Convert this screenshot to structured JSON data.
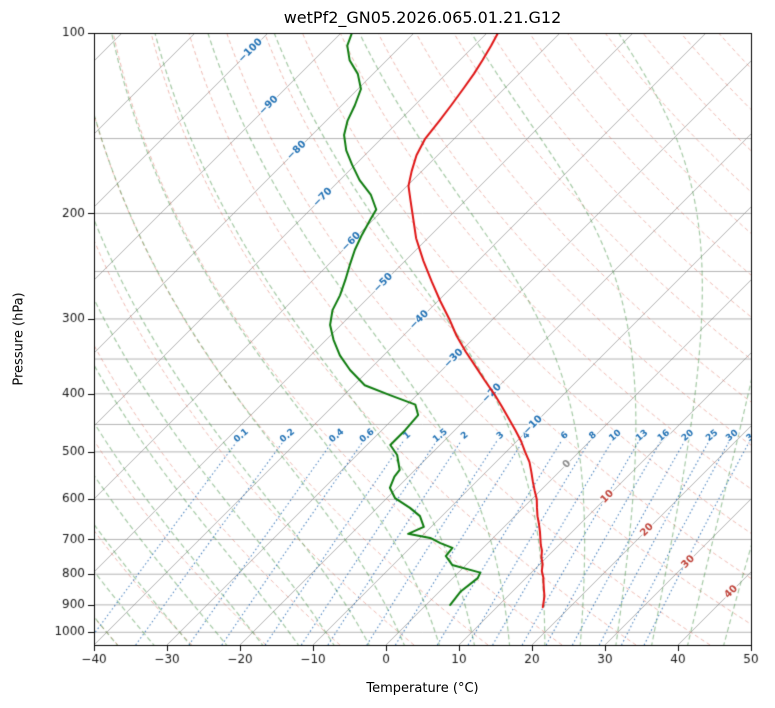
{
  "chart_data": {
    "type": "line",
    "variant": "skew-t-log-p-sounding",
    "title": "wetPf2_GN05.2026.065.01.21.G12",
    "xlabel": "Temperature (°C)",
    "ylabel": "Pressure (hPa)",
    "xlim": [
      -40,
      50
    ],
    "pressure_lim": [
      100,
      1050
    ],
    "skew_deg": 45,
    "grid": true,
    "legend": "none",
    "x_ticks": [
      -40,
      -30,
      -20,
      -10,
      0,
      10,
      20,
      30,
      40,
      50
    ],
    "x_tick_labels": [
      "−40",
      "−30",
      "−20",
      "−10",
      "0",
      "10",
      "20",
      "30",
      "40",
      "50"
    ],
    "pressure_ticks": [
      100,
      200,
      300,
      400,
      500,
      600,
      700,
      800,
      900,
      1000
    ],
    "pressure_tick_labels": [
      "100",
      "200",
      "300",
      "400",
      "500",
      "600",
      "700",
      "800",
      "900",
      "1000"
    ],
    "isobars": [
      100,
      150,
      200,
      250,
      300,
      350,
      400,
      450,
      500,
      600,
      700,
      800,
      900,
      1000
    ],
    "isotherms": {
      "start": -120,
      "end": 50,
      "step": 10
    },
    "isotherm_labels": [
      {
        "label": "−100",
        "t": -100,
        "p": 107
      },
      {
        "label": "−90",
        "t": -90,
        "p": 132
      },
      {
        "label": "−80",
        "t": -80,
        "p": 157
      },
      {
        "label": "−70",
        "t": -70,
        "p": 188
      },
      {
        "label": "−60",
        "t": -60,
        "p": 223
      },
      {
        "label": "−50",
        "t": -50,
        "p": 261
      },
      {
        "label": "−40",
        "t": -40,
        "p": 301
      },
      {
        "label": "−30",
        "t": -30,
        "p": 349
      },
      {
        "label": "−20",
        "t": -20,
        "p": 399
      },
      {
        "label": "−10",
        "t": -10,
        "p": 451
      },
      {
        "label": "0",
        "t": 0,
        "p": 524
      },
      {
        "label": "10",
        "t": 10,
        "p": 594
      },
      {
        "label": "20",
        "t": 20,
        "p": 675
      },
      {
        "label": "30",
        "t": 30,
        "p": 763
      },
      {
        "label": "40",
        "t": 40,
        "p": 856
      }
    ],
    "dry_adiabats_c": {
      "start": -40,
      "end": 190,
      "step": 10
    },
    "moist_adiabats_c": {
      "start": -55,
      "end": 45,
      "step": 5
    },
    "mixing_ratio_gkg": [
      0.1,
      0.2,
      0.4,
      0.6,
      1,
      1.5,
      2,
      3,
      4,
      6,
      8,
      10,
      13,
      16,
      20,
      25,
      30,
      36
    ],
    "mixing_labels": [
      "0.1",
      "0.2",
      "0.4",
      "0.6",
      "1",
      "1.5",
      "2",
      "3",
      "4",
      "6",
      "8",
      "10",
      "13",
      "16",
      "20",
      "25",
      "30",
      "36"
    ],
    "mixing_label_pressure": 470,
    "mixing_line_top_pressure": 478,
    "colors": {
      "grid": "rgba(130,130,130,0.6)",
      "dry_adiabat": "rgba(217,95,77,0.42)",
      "moist_adiabat": "rgba(60,140,60,0.45)",
      "mixing_line": "rgba(30,100,175,0.75)",
      "mixing_label": "#2272b5",
      "cold_label": "#2272b5",
      "zero_label": "#8c8c8c",
      "warm_label": "#c0453c",
      "axis": "#000000",
      "tick_text": "#1a1a1a"
    },
    "series": [
      {
        "name": "temperature",
        "color": "#e01515",
        "width": 2,
        "points": [
          [
            908,
            16.3
          ],
          [
            890,
            15.7
          ],
          [
            870,
            15.0
          ],
          [
            850,
            14.1
          ],
          [
            830,
            13.2
          ],
          [
            810,
            12.3
          ],
          [
            790,
            11.2
          ],
          [
            770,
            10.4
          ],
          [
            750,
            9.3
          ],
          [
            730,
            8.4
          ],
          [
            715,
            7.5
          ],
          [
            700,
            6.7
          ],
          [
            680,
            5.6
          ],
          [
            660,
            4.4
          ],
          [
            640,
            3.1
          ],
          [
            620,
            1.9
          ],
          [
            600,
            0.7
          ],
          [
            580,
            -0.8
          ],
          [
            560,
            -2.3
          ],
          [
            540,
            -3.8
          ],
          [
            520,
            -5.4
          ],
          [
            500,
            -7.4
          ],
          [
            480,
            -9.4
          ],
          [
            460,
            -11.7
          ],
          [
            440,
            -14.2
          ],
          [
            420,
            -16.8
          ],
          [
            400,
            -19.6
          ],
          [
            380,
            -22.7
          ],
          [
            360,
            -25.9
          ],
          [
            340,
            -29.3
          ],
          [
            320,
            -32.7
          ],
          [
            300,
            -36.0
          ],
          [
            280,
            -39.7
          ],
          [
            260,
            -43.5
          ],
          [
            240,
            -47.5
          ],
          [
            220,
            -51.6
          ],
          [
            200,
            -55.5
          ],
          [
            190,
            -57.6
          ],
          [
            180,
            -59.8
          ],
          [
            170,
            -61.4
          ],
          [
            160,
            -62.9
          ],
          [
            150,
            -64.0
          ],
          [
            140,
            -64.5
          ],
          [
            132,
            -65.0
          ],
          [
            124,
            -65.6
          ],
          [
            117,
            -66.2
          ],
          [
            111,
            -66.9
          ],
          [
            105,
            -67.7
          ],
          [
            100,
            -68.5
          ]
        ]
      },
      {
        "name": "dewpoint",
        "color": "#0e7c0e",
        "width": 2,
        "points": [
          [
            900,
            3.3
          ],
          [
            856,
            2.9
          ],
          [
            812,
            3.4
          ],
          [
            795,
            3.0
          ],
          [
            772,
            -1.9
          ],
          [
            746,
            -4.0
          ],
          [
            723,
            -4.2
          ],
          [
            710,
            -6.5
          ],
          [
            696,
            -8.6
          ],
          [
            685,
            -12.2
          ],
          [
            667,
            -11.0
          ],
          [
            640,
            -13.0
          ],
          [
            620,
            -15.5
          ],
          [
            597,
            -18.9
          ],
          [
            574,
            -21.0
          ],
          [
            550,
            -21.9
          ],
          [
            536,
            -22.1
          ],
          [
            506,
            -24.5
          ],
          [
            487,
            -26.8
          ],
          [
            460,
            -26.8
          ],
          [
            434,
            -27.1
          ],
          [
            417,
            -28.9
          ],
          [
            402,
            -33.7
          ],
          [
            387,
            -38.5
          ],
          [
            365,
            -42.6
          ],
          [
            345,
            -46.0
          ],
          [
            325,
            -49.0
          ],
          [
            307,
            -51.5
          ],
          [
            290,
            -53.2
          ],
          [
            274,
            -54.2
          ],
          [
            258,
            -55.6
          ],
          [
            244,
            -57.0
          ],
          [
            230,
            -58.4
          ],
          [
            217,
            -59.5
          ],
          [
            205,
            -60.4
          ],
          [
            197,
            -61.0
          ],
          [
            186,
            -63.8
          ],
          [
            176,
            -67.3
          ],
          [
            166,
            -70.4
          ],
          [
            157,
            -73.2
          ],
          [
            148,
            -75.6
          ],
          [
            140,
            -77.1
          ],
          [
            132,
            -78.2
          ],
          [
            124,
            -79.6
          ],
          [
            117,
            -82.1
          ],
          [
            111,
            -85.1
          ],
          [
            105,
            -87.4
          ],
          [
            100,
            -88.5
          ]
        ]
      }
    ]
  }
}
